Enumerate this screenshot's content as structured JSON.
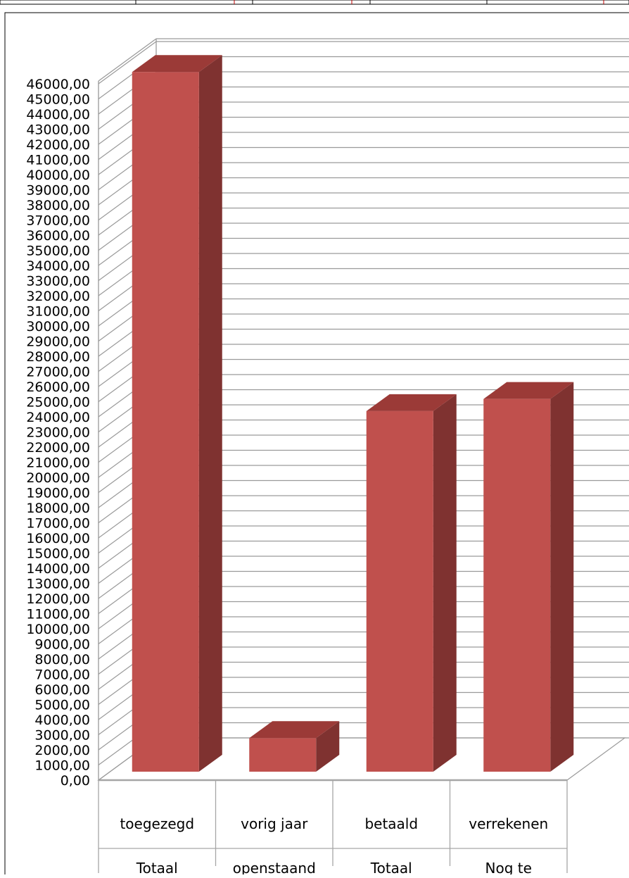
{
  "chart_data": {
    "type": "bar",
    "title": "",
    "xlabel": "",
    "ylabel": "",
    "ylim": [
      0,
      46000
    ],
    "ytick_step": 1000,
    "ytick_labels": [
      "0,00",
      "1000,00",
      "2000,00",
      "3000,00",
      "4000,00",
      "5000,00",
      "6000,00",
      "7000,00",
      "8000,00",
      "9000,00",
      "10000,00",
      "11000,00",
      "12000,00",
      "13000,00",
      "14000,00",
      "15000,00",
      "16000,00",
      "17000,00",
      "18000,00",
      "19000,00",
      "20000,00",
      "21000,00",
      "22000,00",
      "23000,00",
      "24000,00",
      "25000,00",
      "26000,00",
      "27000,00",
      "28000,00",
      "29000,00",
      "30000,00",
      "31000,00",
      "32000,00",
      "33000,00",
      "34000,00",
      "35000,00",
      "36000,00",
      "37000,00",
      "38000,00",
      "39000,00",
      "40000,00",
      "41000,00",
      "42000,00",
      "43000,00",
      "44000,00",
      "45000,00",
      "46000,00"
    ],
    "categories": [
      {
        "line1": "toegezegd",
        "line2": "Totaal"
      },
      {
        "line1": "vorig jaar",
        "line2": "openstaand"
      },
      {
        "line1": "betaald",
        "line2": "Totaal"
      },
      {
        "line1": "verrekenen",
        "line2": "Nog te"
      }
    ],
    "values": [
      46500,
      2500,
      24100,
      24900
    ],
    "grid": true,
    "legend": "none",
    "style": "3d-column",
    "colors": {
      "bar_front": "#c0504d",
      "bar_top": "#9b3a37",
      "bar_side": "#7f3230",
      "grid": "#9a9a9a",
      "axis": "#a6a6a6"
    }
  }
}
